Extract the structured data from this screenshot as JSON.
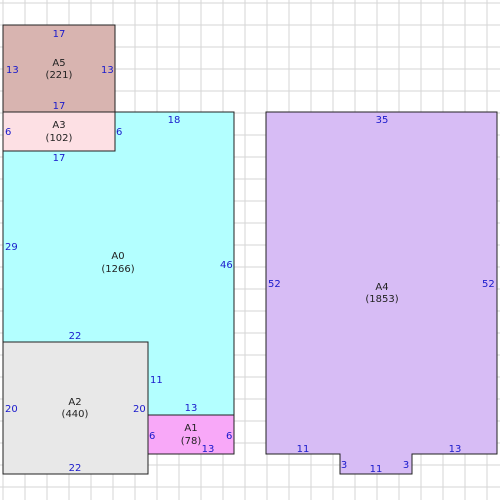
{
  "grid": {
    "step": 22,
    "line_color": "#d6d6d6",
    "background": "#ffffff"
  },
  "colors": {
    "dimension_text": "#1a1acc",
    "label_text": "#222222",
    "outline": "#222222"
  },
  "rooms": [
    {
      "id": "A5",
      "area": "(221)",
      "fill": "#d8b4b0",
      "dims": {
        "top": "17",
        "left": "13",
        "right": "13",
        "bottom": "17"
      }
    },
    {
      "id": "A3",
      "area": "(102)",
      "fill": "#fde0e4",
      "dims": {
        "left": "6",
        "right": "6",
        "bottom": "17"
      }
    },
    {
      "id": "A0",
      "area": "(1266)",
      "fill": "#b3ffff",
      "dims": {
        "top": "18",
        "left": "29",
        "right": "46",
        "bottom": "22",
        "inner": "11",
        "step": "13"
      }
    },
    {
      "id": "A2",
      "area": "(440)",
      "fill": "#e8e8e8",
      "dims": {
        "left": "20",
        "right": "20",
        "bottom": "22"
      }
    },
    {
      "id": "A1",
      "area": "(78)",
      "fill": "#f8a8f8",
      "dims": {
        "left": "6",
        "right": "6",
        "bottom": "13"
      }
    },
    {
      "id": "A4",
      "area": "(1853)",
      "fill": "#d7bcf5",
      "dims": {
        "top": "35",
        "left": "52",
        "right": "52",
        "bottom_left": "11",
        "bottom_right": "13",
        "notch_left": "3",
        "notch_bottom": "11",
        "notch_right": "3"
      }
    }
  ]
}
